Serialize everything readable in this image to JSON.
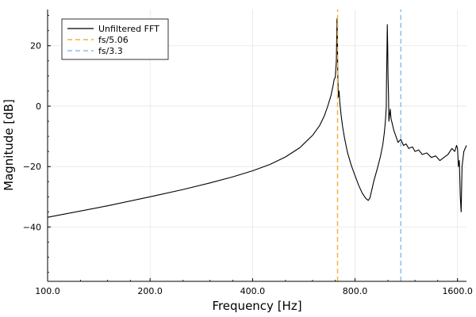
{
  "chart_data": {
    "type": "line",
    "xscale": "log2",
    "xlabel": "Frequency [Hz]",
    "ylabel": "Magnitude [dB]",
    "xlim": [
      100,
      1700
    ],
    "ylim": [
      -58,
      32
    ],
    "grid": true,
    "legend_position": "top-left",
    "x_ticks": [
      100,
      200,
      400,
      800,
      1600
    ],
    "x_tick_labels": [
      "100.0",
      "200.0",
      "400.0",
      "800.0",
      "1600.0"
    ],
    "y_ticks": [
      20,
      0,
      -20,
      -40
    ],
    "y_tick_labels": [
      "20",
      "0",
      "−20",
      "−40"
    ],
    "series": [
      {
        "name": "Unfiltered FFT",
        "color": "#000000",
        "style": "solid",
        "x": [
          100,
          150,
          200,
          250,
          300,
          350,
          400,
          450,
          500,
          550,
          600,
          630,
          650,
          665,
          680,
          690,
          695,
          700,
          705,
          708,
          710,
          712,
          715,
          718,
          722,
          728,
          735,
          745,
          760,
          780,
          800,
          820,
          840,
          860,
          875,
          885,
          895,
          910,
          930,
          950,
          965,
          975,
          980,
          985,
          988,
          990,
          992,
          995,
          998,
          1000,
          1003,
          1006,
          1010,
          1015,
          1020,
          1030,
          1040,
          1055,
          1070,
          1090,
          1110,
          1130,
          1150,
          1180,
          1200,
          1230,
          1260,
          1300,
          1340,
          1380,
          1420,
          1460,
          1500,
          1540,
          1570,
          1590,
          1600,
          1610,
          1620,
          1630,
          1640,
          1650,
          1670,
          1700
        ],
        "y": [
          -36.8,
          -33.0,
          -30.0,
          -27.6,
          -25.4,
          -23.4,
          -21.4,
          -19.3,
          -16.8,
          -13.8,
          -9.7,
          -6.4,
          -3.2,
          0,
          3.5,
          7,
          9,
          9.5,
          15,
          29,
          22,
          10,
          3,
          5,
          1,
          -3,
          -6.5,
          -10.6,
          -15.3,
          -19.6,
          -23,
          -26.2,
          -28.8,
          -30.5,
          -31.2,
          -30.4,
          -28,
          -24.5,
          -20.7,
          -16.6,
          -12.8,
          -8.9,
          -6.5,
          -3,
          0,
          8,
          15,
          27,
          20,
          10,
          4,
          -5,
          -3,
          -1,
          -4,
          -6,
          -8,
          -10,
          -12,
          -11,
          -13,
          -12.5,
          -14,
          -13.5,
          -15,
          -14.5,
          -16,
          -15.5,
          -17,
          -16.5,
          -18,
          -17,
          -16,
          -14,
          -15,
          -13,
          -14,
          -20,
          -18,
          -30,
          -35,
          -20,
          -15,
          -13
        ]
      },
      {
        "name": "fs/5.06",
        "color": "#f0b43c",
        "style": "dashed",
        "x": [
          711,
          711
        ],
        "y": [
          -58,
          32
        ]
      },
      {
        "name": "fs/3.3",
        "color": "#88c0f0",
        "style": "dashed",
        "x": [
          1090,
          1090
        ],
        "y": [
          -58,
          32
        ]
      }
    ]
  }
}
